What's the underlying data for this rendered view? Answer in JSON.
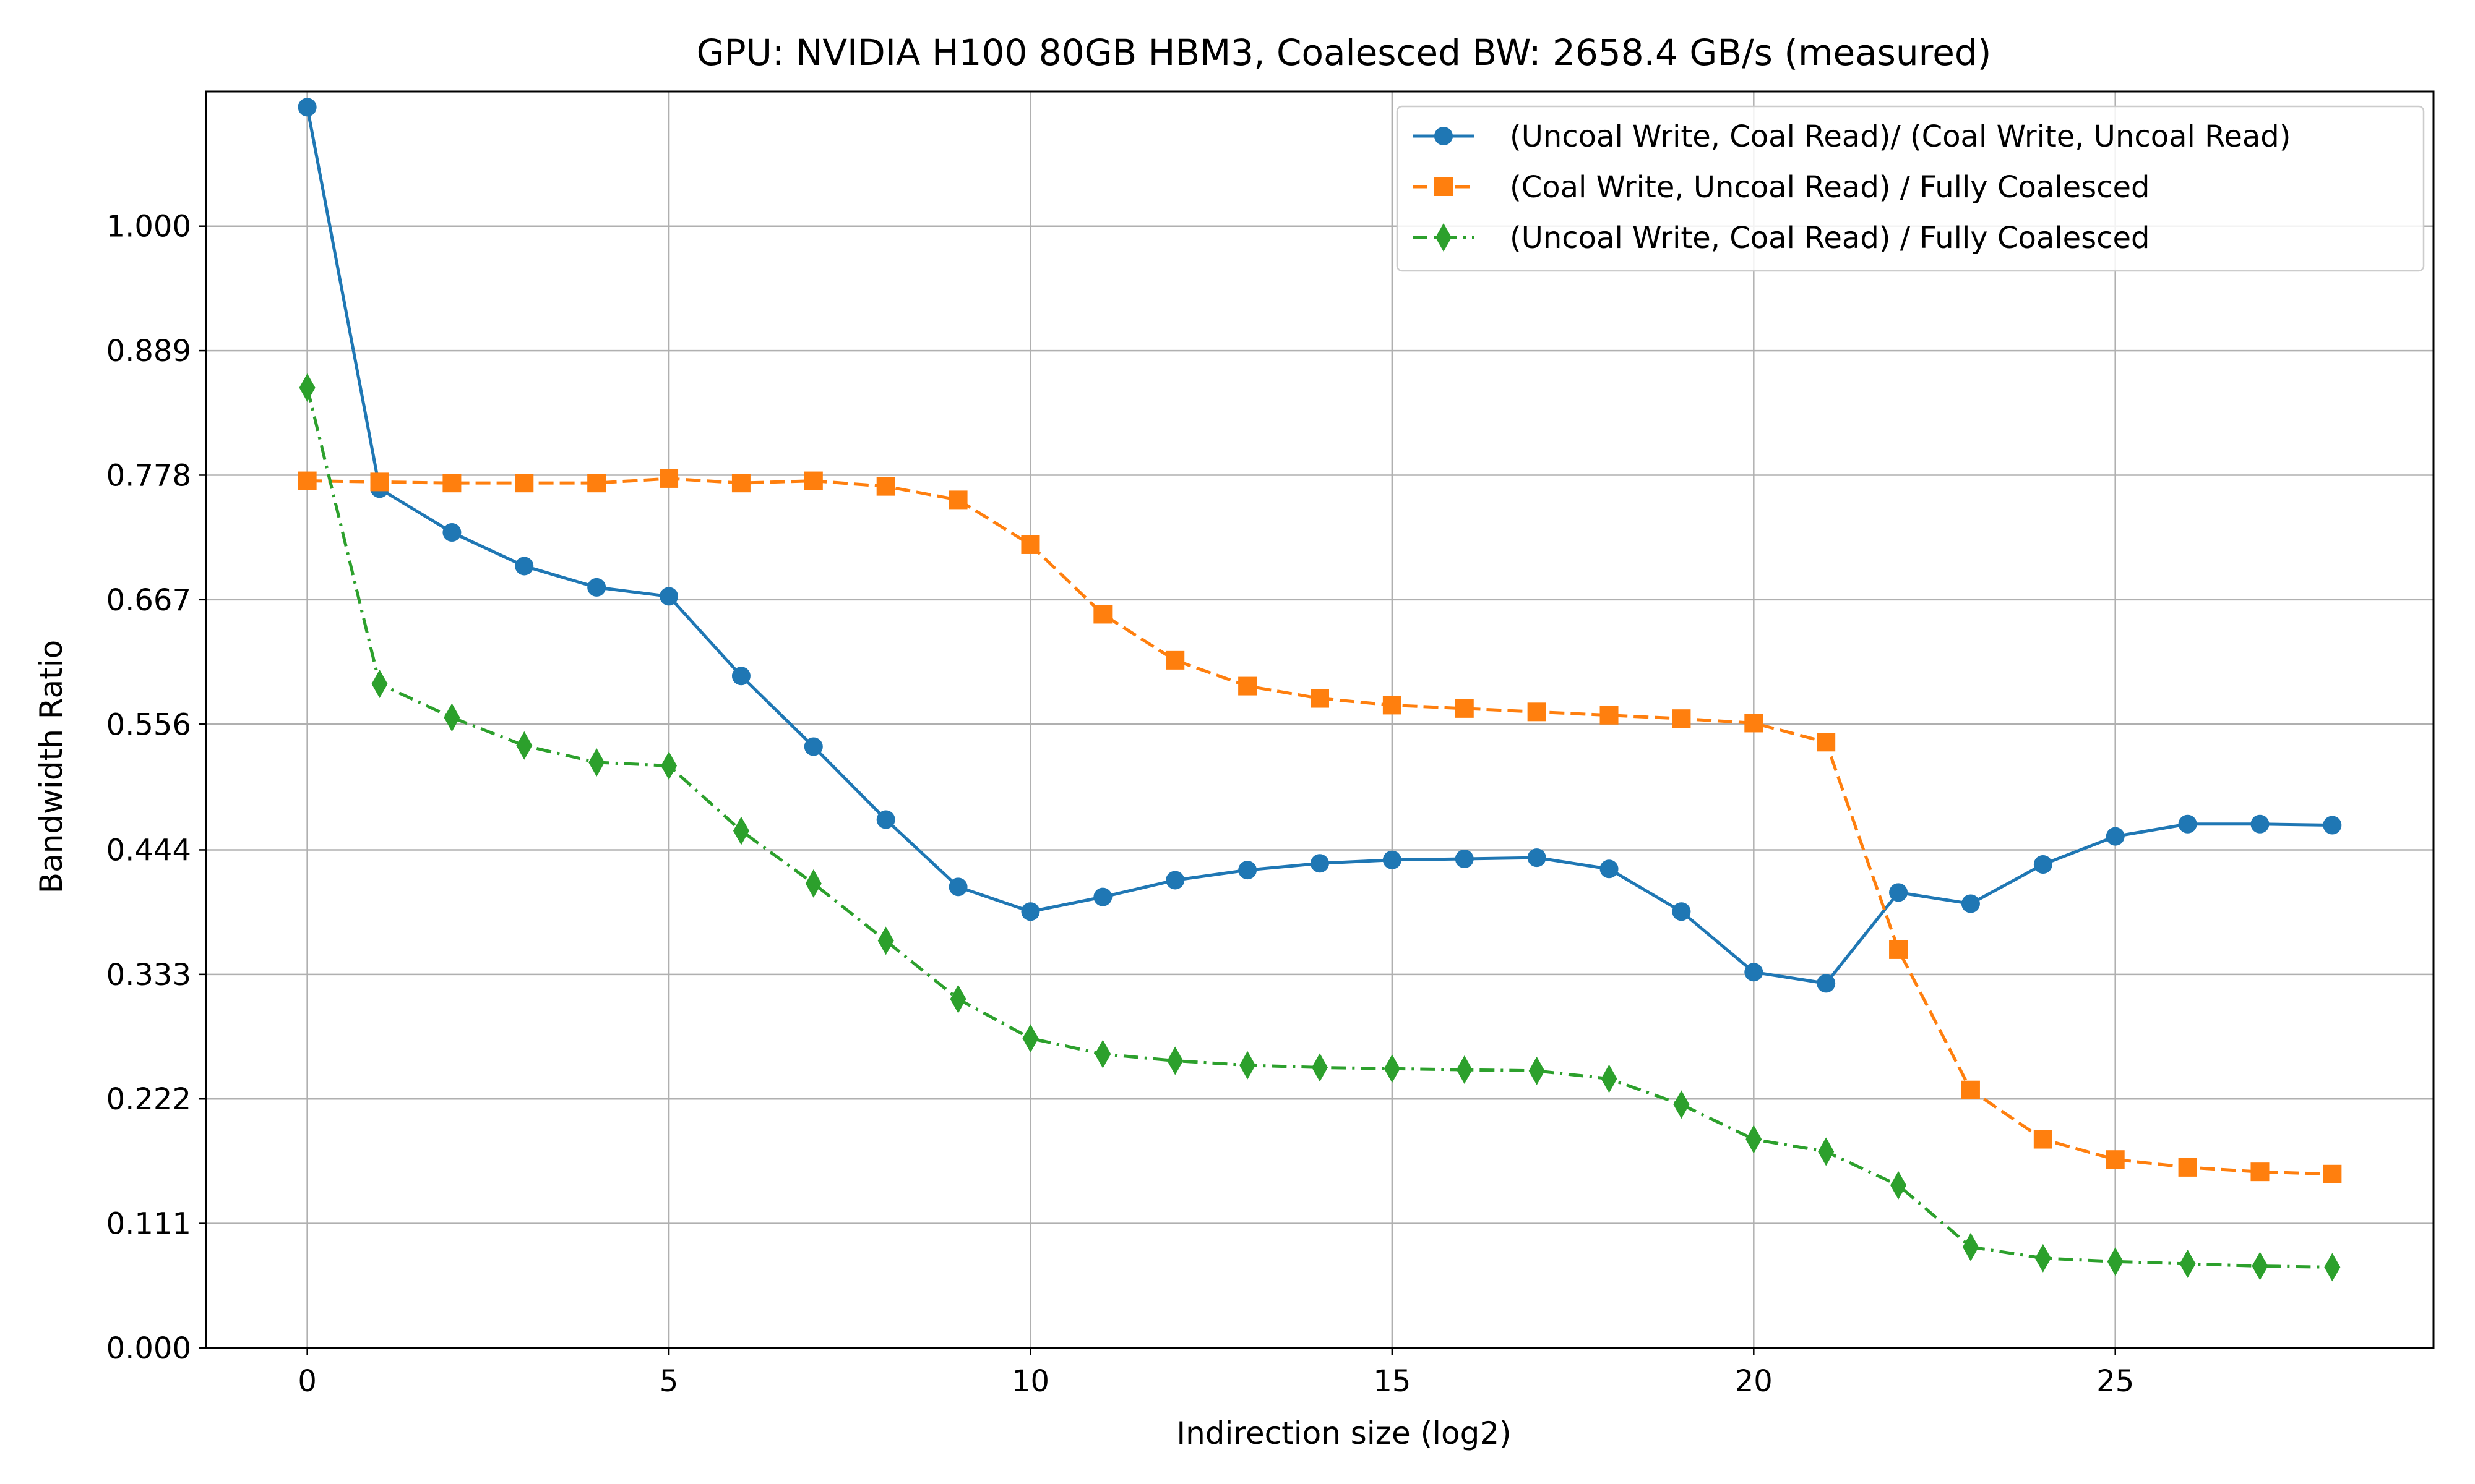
{
  "chart_data": {
    "type": "line",
    "title": "GPU: NVIDIA H100 80GB HBM3, Coalesced BW: 2658.4 GB/s (measured)",
    "xlabel": "Indirection size (log2)",
    "ylabel": "Bandwidth Ratio",
    "xlim": [
      -1.4,
      29.4
    ],
    "ylim": [
      0,
      1.12
    ],
    "x_ticks": [
      0,
      5,
      10,
      15,
      20,
      25
    ],
    "x_tick_labels": [
      "0",
      "5",
      "10",
      "15",
      "20",
      "25"
    ],
    "y_ticks": [
      0,
      0.111,
      0.222,
      0.333,
      0.444,
      0.556,
      0.667,
      0.778,
      0.889,
      1.0
    ],
    "y_tick_labels": [
      "0.000",
      "0.111",
      "0.222",
      "0.333",
      "0.444",
      "0.556",
      "0.667",
      "0.778",
      "0.889",
      "1.000"
    ],
    "grid": true,
    "legend_position": "top-right",
    "x": [
      0,
      1,
      2,
      3,
      4,
      5,
      6,
      7,
      8,
      9,
      10,
      11,
      12,
      13,
      14,
      15,
      16,
      17,
      18,
      19,
      20,
      21,
      22,
      23,
      24,
      25,
      26,
      27,
      28
    ],
    "series": [
      {
        "name": "(Uncoal Write, Coal Read)/ (Coal Write, Uncoal Read)",
        "color": "#1f77b4",
        "marker": "circle",
        "linestyle": "solid",
        "values": [
          1.106,
          0.766,
          0.727,
          0.697,
          0.678,
          0.67,
          0.599,
          0.536,
          0.471,
          0.411,
          0.389,
          0.402,
          0.417,
          0.426,
          0.432,
          0.435,
          0.436,
          0.437,
          0.427,
          0.389,
          0.335,
          0.325,
          0.406,
          0.396,
          0.431,
          0.456,
          0.467,
          0.467,
          0.466
        ]
      },
      {
        "name": "(Coal Write, Uncoal Read) / Fully Coalesced",
        "color": "#ff7f0e",
        "marker": "square",
        "linestyle": "dashed",
        "values": [
          0.773,
          0.772,
          0.771,
          0.771,
          0.771,
          0.775,
          0.771,
          0.773,
          0.768,
          0.756,
          0.716,
          0.654,
          0.613,
          0.59,
          0.579,
          0.573,
          0.57,
          0.567,
          0.564,
          0.561,
          0.557,
          0.54,
          0.355,
          0.23,
          0.186,
          0.168,
          0.161,
          0.157,
          0.155
        ]
      },
      {
        "name": "(Uncoal Write, Coal Read) / Fully Coalesced",
        "color": "#2ca02c",
        "marker": "thin_diamond",
        "linestyle": "dashdot",
        "values": [
          0.856,
          0.592,
          0.562,
          0.537,
          0.522,
          0.519,
          0.461,
          0.414,
          0.363,
          0.311,
          0.276,
          0.262,
          0.256,
          0.252,
          0.25,
          0.249,
          0.248,
          0.247,
          0.24,
          0.217,
          0.186,
          0.175,
          0.145,
          0.09,
          0.08,
          0.077,
          0.075,
          0.073,
          0.072
        ]
      }
    ]
  }
}
